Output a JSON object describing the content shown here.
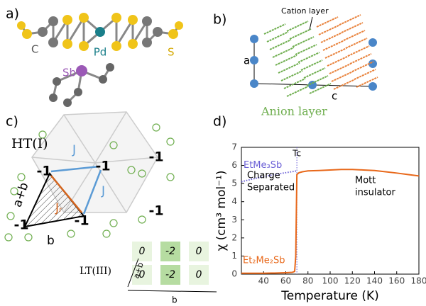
{
  "panel_a": {
    "label": "a)",
    "atoms": [
      "C",
      "Pd",
      "S",
      "Sb"
    ]
  },
  "panel_b": {
    "label": "b)",
    "cation_layer": "Cation layer",
    "axis_a": "a",
    "axis_c": "c",
    "anion_layer": "Anion layer"
  },
  "panel_c": {
    "label": "c)",
    "phase_high": "HT(I)",
    "couplings": [
      "J",
      "J",
      "Jᵣ"
    ],
    "charges_high": [
      "-1",
      "-1",
      "-1",
      "-1",
      "-1",
      "-1"
    ],
    "edge_labels": [
      "a+b",
      "b"
    ],
    "phase_low": "LT(III)",
    "charges_low": [
      "0",
      "-2",
      "0",
      "0",
      "-2",
      "0"
    ],
    "low_axes": [
      "a+b",
      "b"
    ]
  },
  "panel_d": {
    "label": "d)"
  },
  "chart_data": {
    "type": "line",
    "xlabel": "Temperature (K)",
    "ylabel": "χ (cm³ mol⁻¹)",
    "x": [
      20,
      30,
      40,
      50,
      60,
      66,
      68,
      69,
      70,
      72,
      75,
      80,
      90,
      100,
      110,
      120,
      130,
      140,
      150,
      160,
      170,
      180
    ],
    "series": [
      {
        "name": "EtMe₃Sb",
        "color": "#6a5fd6",
        "dotted": true,
        "values": [
          5.1,
          5.25,
          5.38,
          5.5,
          5.6,
          5.66,
          5.68,
          5.69,
          5.7,
          null,
          null,
          null,
          null,
          null,
          null,
          null,
          null,
          null,
          null,
          null,
          null,
          null
        ]
      },
      {
        "name": "Et₂Me₂Sb",
        "color": "#e8681a",
        "dotted": false,
        "values": [
          0.05,
          0.05,
          0.05,
          0.06,
          0.08,
          0.1,
          0.15,
          1.0,
          5.5,
          5.6,
          5.65,
          5.7,
          5.72,
          5.75,
          5.78,
          5.78,
          5.75,
          5.72,
          5.65,
          5.58,
          5.5,
          5.42
        ]
      }
    ],
    "tc": 70,
    "tc_label": "Tc",
    "annotations": [
      "Charge",
      "Separated",
      "Mott",
      "insulator"
    ],
    "xlim": [
      20,
      180
    ],
    "xticks": [
      40,
      60,
      80,
      100,
      120,
      140,
      160,
      180
    ],
    "ylim": [
      0,
      7
    ],
    "yticks": [
      0,
      1,
      2,
      3,
      4,
      5,
      6,
      7
    ]
  }
}
